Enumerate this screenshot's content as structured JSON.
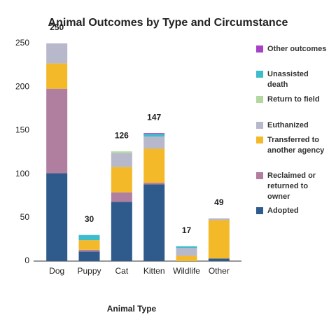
{
  "chart_data": {
    "type": "stacked_bar",
    "title": "Animal Outcomes by Type and Circumstance",
    "x_label": "Animal Type",
    "categories": [
      "Dog",
      "Puppy",
      "Cat",
      "Kitten",
      "Wildlife",
      "Other"
    ],
    "series": [
      {
        "name": "Adopted",
        "color": "#2e5a8c",
        "values": [
          101,
          11,
          68,
          88,
          0,
          3
        ]
      },
      {
        "name": "Reclaimed or returned to owner",
        "color": "#b07fa0",
        "values": [
          97,
          2,
          11,
          2,
          0,
          0
        ]
      },
      {
        "name": "Transferred to another agency",
        "color": "#f4b929",
        "values": [
          29,
          11,
          29,
          39,
          6,
          44
        ]
      },
      {
        "name": "Euthanized",
        "color": "#b8b8cc",
        "values": [
          23,
          0,
          16,
          14,
          9,
          2
        ]
      },
      {
        "name": "Return to field",
        "color": "#b2d8a0",
        "values": [
          0,
          0,
          2,
          0,
          0,
          0
        ]
      },
      {
        "name": "Unassisted death",
        "color": "#3fbccc",
        "values": [
          0,
          6,
          0,
          3,
          2,
          0
        ]
      },
      {
        "name": "Other outcomes",
        "color": "#a742c6",
        "values": [
          0,
          0,
          0,
          1,
          0,
          0
        ]
      }
    ],
    "totals": [
      250,
      30,
      126,
      147,
      17,
      49
    ],
    "ylim": [
      0,
      250
    ],
    "yticks": [
      0,
      50,
      100,
      150,
      200,
      250
    ],
    "grid": false
  }
}
